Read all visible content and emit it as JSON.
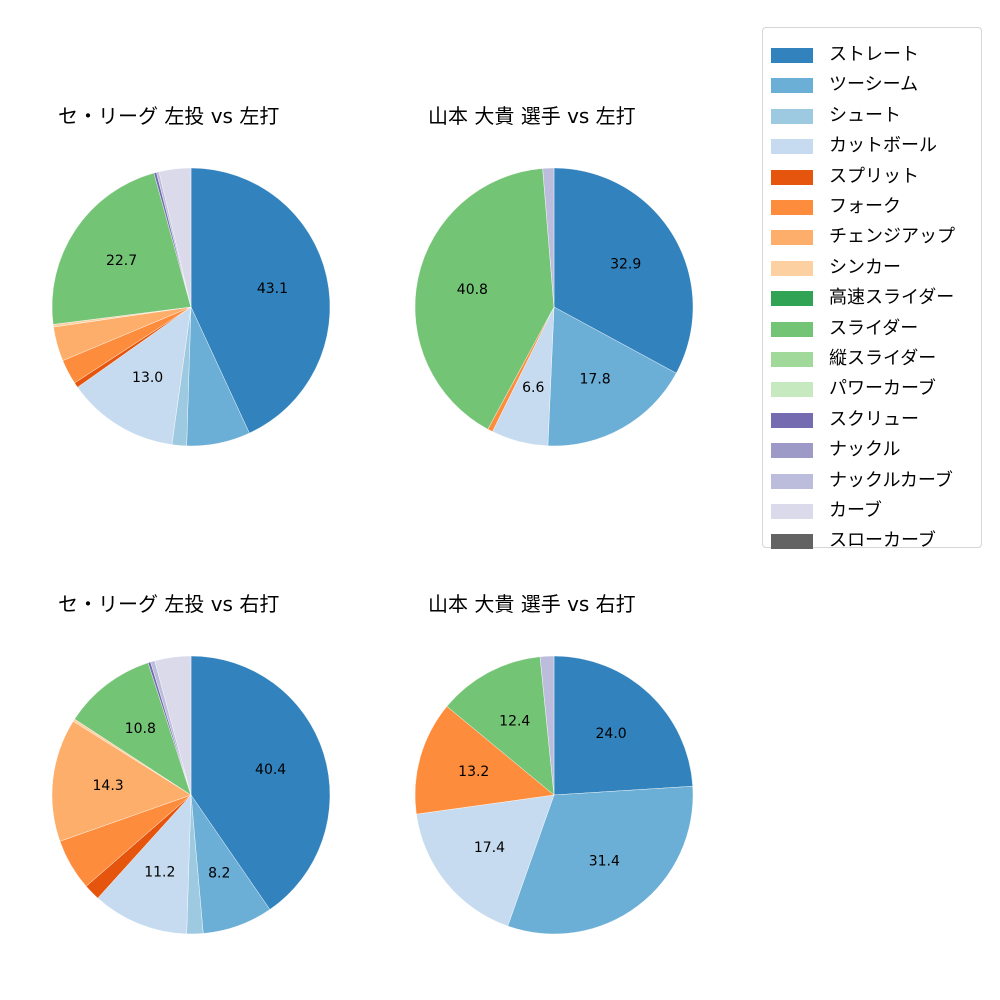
{
  "figure": {
    "legend_title": "",
    "colors": {
      "ストレート": "#3182bd",
      "ツーシーム": "#6baed6",
      "シュート": "#9ecae1",
      "カットボール": "#c6dbef",
      "スプリット": "#e6550d",
      "フォーク": "#fd8d3c",
      "チェンジアップ": "#fdae6b",
      "シンカー": "#fdd0a2",
      "高速スライダー": "#31a354",
      "スライダー": "#74c476",
      "縦スライダー": "#a1d99b",
      "パワーカーブ": "#c7e9c0",
      "スクリュー": "#756bb1",
      "ナックル": "#9e9ac8",
      "ナックルカーブ": "#bcbddc",
      "カーブ": "#dadaeb",
      "スローカーブ": "#636363"
    }
  },
  "legend": {
    "items": [
      {
        "label": "ストレート",
        "color": "#3182bd"
      },
      {
        "label": "ツーシーム",
        "color": "#6baed6"
      },
      {
        "label": "シュート",
        "color": "#9ecae1"
      },
      {
        "label": "カットボール",
        "color": "#c6dbef"
      },
      {
        "label": "スプリット",
        "color": "#e6550d"
      },
      {
        "label": "フォーク",
        "color": "#fd8d3c"
      },
      {
        "label": "チェンジアップ",
        "color": "#fdae6b"
      },
      {
        "label": "シンカー",
        "color": "#fdd0a2"
      },
      {
        "label": "高速スライダー",
        "color": "#31a354"
      },
      {
        "label": "スライダー",
        "color": "#74c476"
      },
      {
        "label": "縦スライダー",
        "color": "#a1d99b"
      },
      {
        "label": "パワーカーブ",
        "color": "#c7e9c0"
      },
      {
        "label": "スクリュー",
        "color": "#756bb1"
      },
      {
        "label": "ナックル",
        "color": "#9e9ac8"
      },
      {
        "label": "ナックルカーブ",
        "color": "#bcbddc"
      },
      {
        "label": "カーブ",
        "color": "#dadaeb"
      },
      {
        "label": "スローカーブ",
        "color": "#636363"
      }
    ]
  },
  "chart_data": [
    {
      "type": "pie",
      "title": "セ・リーグ 左投 vs 左打",
      "start_angle": 90,
      "direction": "clockwise",
      "label_threshold_note": "labels shown only on larger slices",
      "slices": [
        {
          "label": "ストレート",
          "value": 43.1,
          "show_label": true
        },
        {
          "label": "ツーシーム",
          "value": 7.4,
          "show_label": false
        },
        {
          "label": "シュート",
          "value": 1.7,
          "show_label": false
        },
        {
          "label": "カットボール",
          "value": 13.0,
          "show_label": true
        },
        {
          "label": "スプリット",
          "value": 0.6,
          "show_label": false
        },
        {
          "label": "フォーク",
          "value": 2.9,
          "show_label": false
        },
        {
          "label": "チェンジアップ",
          "value": 4.0,
          "show_label": false
        },
        {
          "label": "シンカー",
          "value": 0.3,
          "show_label": false
        },
        {
          "label": "スライダー",
          "value": 22.7,
          "show_label": true
        },
        {
          "label": "スクリュー",
          "value": 0.3,
          "show_label": false
        },
        {
          "label": "ナックルカーブ",
          "value": 0.3,
          "show_label": false
        },
        {
          "label": "カーブ",
          "value": 3.7,
          "show_label": false
        }
      ]
    },
    {
      "type": "pie",
      "title": "山本 大貴 選手 vs 左打",
      "start_angle": 90,
      "direction": "clockwise",
      "slices": [
        {
          "label": "ストレート",
          "value": 32.9,
          "show_label": true
        },
        {
          "label": "ツーシーム",
          "value": 17.8,
          "show_label": true
        },
        {
          "label": "カットボール",
          "value": 6.6,
          "show_label": true
        },
        {
          "label": "フォーク",
          "value": 0.6,
          "show_label": false
        },
        {
          "label": "スライダー",
          "value": 40.8,
          "show_label": true
        },
        {
          "label": "ナックルカーブ",
          "value": 1.3,
          "show_label": false
        }
      ]
    },
    {
      "type": "pie",
      "title": "セ・リーグ 左投 vs 右打",
      "start_angle": 90,
      "direction": "clockwise",
      "slices": [
        {
          "label": "ストレート",
          "value": 40.4,
          "show_label": true
        },
        {
          "label": "ツーシーム",
          "value": 8.2,
          "show_label": true
        },
        {
          "label": "シュート",
          "value": 1.9,
          "show_label": false
        },
        {
          "label": "カットボール",
          "value": 11.2,
          "show_label": true
        },
        {
          "label": "スプリット",
          "value": 1.9,
          "show_label": false
        },
        {
          "label": "フォーク",
          "value": 6.0,
          "show_label": false
        },
        {
          "label": "チェンジアップ",
          "value": 14.3,
          "show_label": true
        },
        {
          "label": "シンカー",
          "value": 0.3,
          "show_label": false
        },
        {
          "label": "スライダー",
          "value": 10.8,
          "show_label": true
        },
        {
          "label": "スクリュー",
          "value": 0.3,
          "show_label": false
        },
        {
          "label": "ナックルカーブ",
          "value": 0.5,
          "show_label": false
        },
        {
          "label": "カーブ",
          "value": 4.2,
          "show_label": false
        }
      ]
    },
    {
      "type": "pie",
      "title": "山本 大貴 選手 vs 右打",
      "start_angle": 90,
      "direction": "clockwise",
      "slices": [
        {
          "label": "ストレート",
          "value": 24.0,
          "show_label": true
        },
        {
          "label": "ツーシーム",
          "value": 31.4,
          "show_label": true
        },
        {
          "label": "カットボール",
          "value": 17.4,
          "show_label": true
        },
        {
          "label": "フォーク",
          "value": 13.2,
          "show_label": true
        },
        {
          "label": "スライダー",
          "value": 12.4,
          "show_label": true
        },
        {
          "label": "ナックルカーブ",
          "value": 1.6,
          "show_label": false
        }
      ]
    }
  ]
}
